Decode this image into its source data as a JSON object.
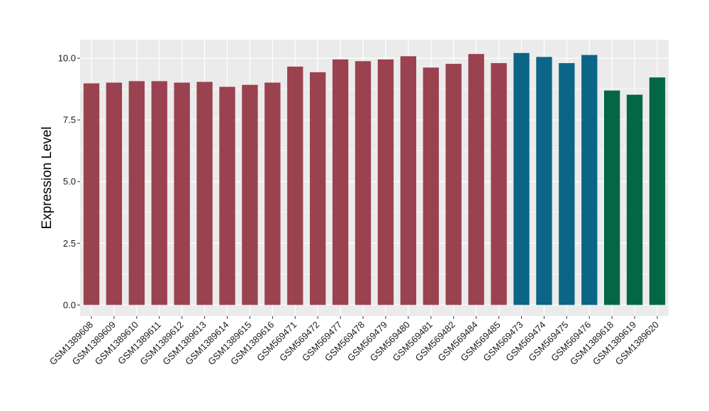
{
  "chart_data": {
    "type": "bar",
    "title": "",
    "xlabel": "",
    "ylabel": "Expression Level",
    "ylim": [
      -0.45,
      10.75
    ],
    "yticks": [
      0.0,
      2.5,
      5.0,
      7.5,
      10.0
    ],
    "ytick_labels": [
      "0.0",
      "2.5",
      "5.0",
      "7.5",
      "10.0"
    ],
    "grid": true,
    "legend": "none",
    "categories": [
      "GSM1389608",
      "GSM1389609",
      "GSM1389610",
      "GSM1389611",
      "GSM1389612",
      "GSM1389613",
      "GSM1389614",
      "GSM1389615",
      "GSM1389616",
      "GSM569471",
      "GSM569472",
      "GSM569477",
      "GSM569478",
      "GSM569479",
      "GSM569480",
      "GSM569481",
      "GSM569482",
      "GSM569484",
      "GSM569485",
      "GSM569473",
      "GSM569474",
      "GSM569475",
      "GSM569476",
      "GSM1389618",
      "GSM1389619",
      "GSM1389620"
    ],
    "values": [
      8.98,
      9.01,
      9.07,
      9.07,
      9.01,
      9.04,
      8.84,
      8.92,
      9.01,
      9.66,
      9.43,
      9.95,
      9.88,
      9.95,
      10.08,
      9.62,
      9.77,
      10.17,
      9.8,
      10.21,
      10.05,
      9.8,
      10.13,
      8.69,
      8.52,
      9.22
    ],
    "groups": [
      0,
      0,
      0,
      0,
      0,
      0,
      0,
      0,
      0,
      0,
      0,
      0,
      0,
      0,
      0,
      0,
      0,
      0,
      0,
      1,
      1,
      1,
      1,
      2,
      2,
      2
    ],
    "group_colors": [
      "#9a424f",
      "#0b6587",
      "#036644"
    ],
    "panel_background": "#ebebeb",
    "grid_color": "#ffffff"
  }
}
